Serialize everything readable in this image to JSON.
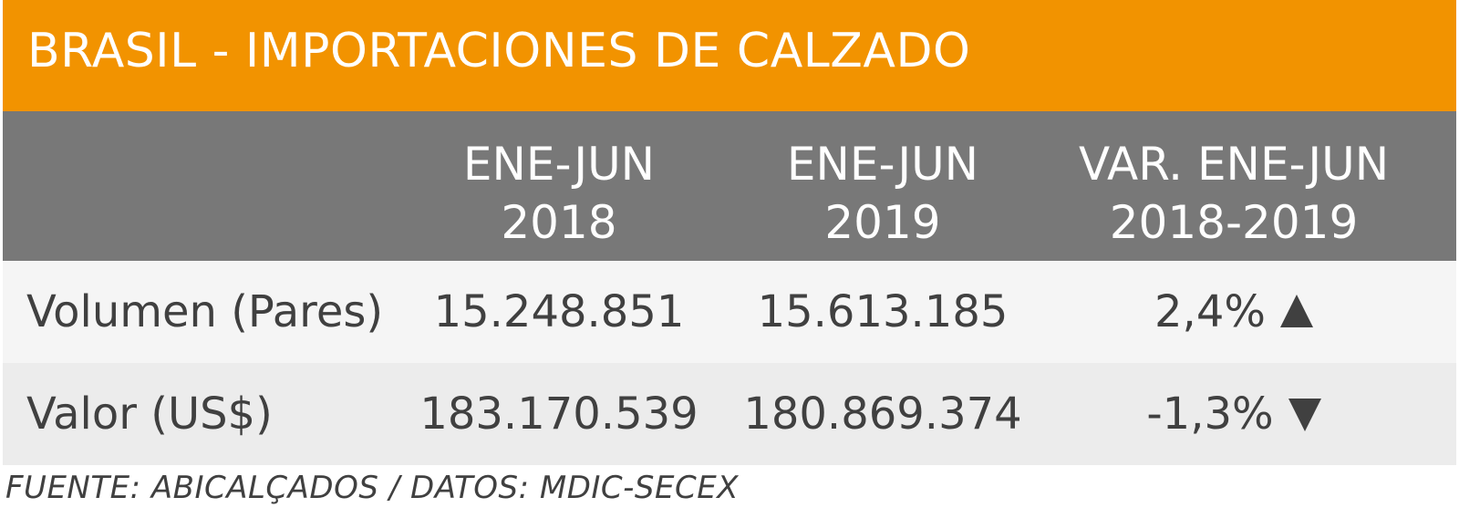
{
  "colors": {
    "title_bg": "#f29300",
    "header_bg": "#787878",
    "row1_bg": "#f5f5f5",
    "row2_bg": "#ececec",
    "text": "#404040"
  },
  "chart_data": {
    "type": "table",
    "title": "BRASIL - IMPORTACIONES DE CALZADO",
    "columns": [
      {
        "line1": "",
        "line2": ""
      },
      {
        "line1": "ENE-JUN",
        "line2": "2018"
      },
      {
        "line1": "ENE-JUN",
        "line2": "2019"
      },
      {
        "line1": "VAR. ENE-JUN",
        "line2": "2018-2019"
      }
    ],
    "rows": [
      {
        "label": "Volumen (Pares)",
        "v2018": "15.248.851",
        "v2019": "15.613.185",
        "var": "2,4%",
        "trend": "up"
      },
      {
        "label": "Valor (US$)",
        "v2018": "183.170.539",
        "v2019": "180.869.374",
        "var": "-1,3%",
        "trend": "down"
      }
    ],
    "source": "FUENTE: ABICALÇADOS / DATOS: MDIC-SECEX"
  }
}
